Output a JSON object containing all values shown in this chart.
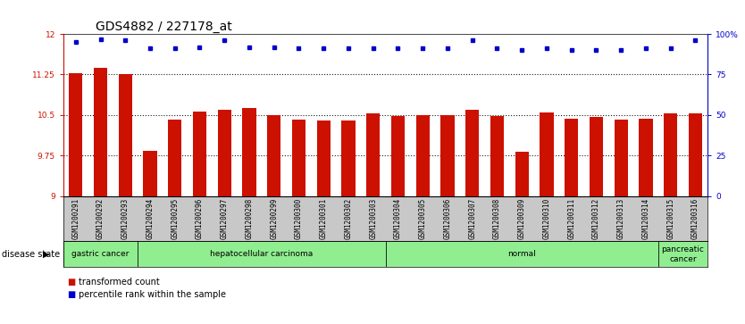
{
  "title": "GDS4882 / 227178_at",
  "samples": [
    "GSM1200291",
    "GSM1200292",
    "GSM1200293",
    "GSM1200294",
    "GSM1200295",
    "GSM1200296",
    "GSM1200297",
    "GSM1200298",
    "GSM1200299",
    "GSM1200300",
    "GSM1200301",
    "GSM1200302",
    "GSM1200303",
    "GSM1200304",
    "GSM1200305",
    "GSM1200306",
    "GSM1200307",
    "GSM1200308",
    "GSM1200309",
    "GSM1200310",
    "GSM1200311",
    "GSM1200312",
    "GSM1200313",
    "GSM1200314",
    "GSM1200315",
    "GSM1200316"
  ],
  "bar_values": [
    11.27,
    11.37,
    11.26,
    9.84,
    10.42,
    10.57,
    10.6,
    10.63,
    10.49,
    10.42,
    10.4,
    10.4,
    10.53,
    10.48,
    10.49,
    10.5,
    10.59,
    10.48,
    9.82,
    10.54,
    10.43,
    10.47,
    10.42,
    10.43,
    10.53,
    10.53
  ],
  "percentile_values": [
    95,
    97,
    96,
    91,
    91,
    92,
    96,
    92,
    92,
    91,
    91,
    91,
    91,
    91,
    91,
    91,
    96,
    91,
    90,
    91,
    90,
    90,
    90,
    91,
    91,
    96
  ],
  "bar_color": "#cc1100",
  "percentile_color": "#0000cc",
  "ylim": [
    9.0,
    12.0
  ],
  "yticks": [
    9.0,
    9.75,
    10.5,
    11.25,
    12.0
  ],
  "ytick_labels": [
    "9",
    "9.75",
    "10.5",
    "11.25",
    "12"
  ],
  "right_yticks": [
    0,
    25,
    50,
    75,
    100
  ],
  "right_ytick_labels": [
    "0",
    "25",
    "50",
    "75",
    "100%"
  ],
  "gridlines": [
    9.75,
    10.5,
    11.25
  ],
  "disease_groups": [
    {
      "label": "gastric cancer",
      "start": 0,
      "end": 3,
      "color": "#90ee90"
    },
    {
      "label": "hepatocellular carcinoma",
      "start": 3,
      "end": 13,
      "color": "#90ee90"
    },
    {
      "label": "normal",
      "start": 13,
      "end": 24,
      "color": "#90ee90"
    },
    {
      "label": "pancreatic\ncancer",
      "start": 24,
      "end": 26,
      "color": "#90ee90"
    }
  ],
  "disease_state_label": "disease state",
  "legend_items": [
    {
      "color": "#cc1100",
      "label": "transformed count"
    },
    {
      "color": "#0000cc",
      "label": "percentile rank within the sample"
    }
  ],
  "bg_color": "#ffffff",
  "tick_area_bg": "#c8c8c8",
  "title_fontsize": 10,
  "tick_fontsize": 6.5,
  "bar_width": 0.55
}
